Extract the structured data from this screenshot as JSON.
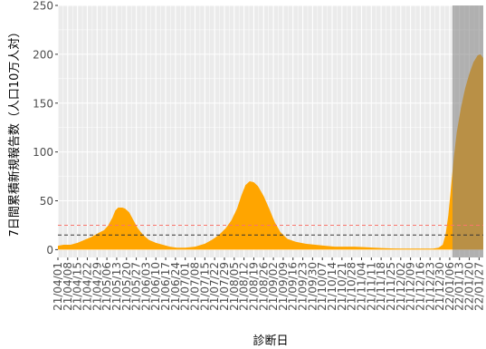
{
  "chart_data": {
    "type": "area",
    "xlabel": "診断日",
    "ylabel": "7日間累積新規報告数（人口10万人対）",
    "ylim": [
      -8,
      250
    ],
    "y_ticks": [
      0,
      50,
      100,
      150,
      200,
      250
    ],
    "x_tick_labels": [
      "21/04/01",
      "21/04/08",
      "21/04/15",
      "21/04/22",
      "21/04/29",
      "21/05/06",
      "21/05/13",
      "21/05/20",
      "21/05/27",
      "21/06/03",
      "21/06/10",
      "21/06/17",
      "21/06/24",
      "21/07/01",
      "21/07/08",
      "21/07/15",
      "21/07/22",
      "21/07/29",
      "21/08/05",
      "21/08/12",
      "21/08/19",
      "21/08/26",
      "21/09/02",
      "21/09/09",
      "21/09/16",
      "21/09/23",
      "21/09/30",
      "21/10/07",
      "21/10/14",
      "21/10/21",
      "21/10/28",
      "21/11/04",
      "21/11/11",
      "21/11/18",
      "21/11/25",
      "21/12/02",
      "21/12/09",
      "21/12/16",
      "21/12/23",
      "21/12/30",
      "22/01/06",
      "22/01/13",
      "22/01/20",
      "22/01/27"
    ],
    "x_range": [
      "2021-04-01",
      "2022-01-30"
    ],
    "shaded_region": [
      "2022-01-08",
      "2022-01-30"
    ],
    "reference_lines": [
      {
        "value": 25,
        "style": "dashed",
        "color": "#f8766d"
      },
      {
        "value": 15,
        "style": "dashed",
        "color": "#333333"
      }
    ],
    "grid": true,
    "series": [
      {
        "color": "#ffa500",
        "points": [
          [
            "2021-04-01",
            4
          ],
          [
            "2021-04-05",
            5
          ],
          [
            "2021-04-10",
            5
          ],
          [
            "2021-04-15",
            7
          ],
          [
            "2021-04-20",
            10
          ],
          [
            "2021-04-25",
            13
          ],
          [
            "2021-04-30",
            17
          ],
          [
            "2021-05-04",
            20
          ],
          [
            "2021-05-07",
            25
          ],
          [
            "2021-05-10",
            33
          ],
          [
            "2021-05-12",
            40
          ],
          [
            "2021-05-14",
            43
          ],
          [
            "2021-05-17",
            43
          ],
          [
            "2021-05-19",
            42
          ],
          [
            "2021-05-22",
            38
          ],
          [
            "2021-05-25",
            30
          ],
          [
            "2021-05-28",
            22
          ],
          [
            "2021-06-01",
            15
          ],
          [
            "2021-06-05",
            10
          ],
          [
            "2021-06-10",
            7
          ],
          [
            "2021-06-15",
            5
          ],
          [
            "2021-06-20",
            3
          ],
          [
            "2021-06-25",
            2
          ],
          [
            "2021-07-01",
            2
          ],
          [
            "2021-07-08",
            3
          ],
          [
            "2021-07-15",
            6
          ],
          [
            "2021-07-20",
            10
          ],
          [
            "2021-07-25",
            15
          ],
          [
            "2021-07-30",
            22
          ],
          [
            "2021-08-03",
            30
          ],
          [
            "2021-08-07",
            42
          ],
          [
            "2021-08-10",
            55
          ],
          [
            "2021-08-13",
            66
          ],
          [
            "2021-08-16",
            70
          ],
          [
            "2021-08-19",
            69
          ],
          [
            "2021-08-22",
            65
          ],
          [
            "2021-08-26",
            55
          ],
          [
            "2021-08-30",
            42
          ],
          [
            "2021-09-03",
            28
          ],
          [
            "2021-09-07",
            18
          ],
          [
            "2021-09-12",
            11
          ],
          [
            "2021-09-18",
            8
          ],
          [
            "2021-09-25",
            6
          ],
          [
            "2021-10-02",
            5
          ],
          [
            "2021-10-09",
            4
          ],
          [
            "2021-10-16",
            3
          ],
          [
            "2021-10-23",
            3
          ],
          [
            "2021-10-30",
            3
          ],
          [
            "2021-11-06",
            2.5
          ],
          [
            "2021-11-13",
            2
          ],
          [
            "2021-11-20",
            1.5
          ],
          [
            "2021-11-27",
            1.2
          ],
          [
            "2021-12-04",
            1
          ],
          [
            "2021-12-11",
            1
          ],
          [
            "2021-12-18",
            1
          ],
          [
            "2021-12-25",
            1
          ],
          [
            "2021-12-29",
            2
          ],
          [
            "2022-01-01",
            5
          ],
          [
            "2022-01-03",
            15
          ],
          [
            "2022-01-05",
            35
          ],
          [
            "2022-01-07",
            65
          ],
          [
            "2022-01-09",
            95
          ],
          [
            "2022-01-11",
            120
          ],
          [
            "2022-01-14",
            145
          ],
          [
            "2022-01-17",
            165
          ],
          [
            "2022-01-20",
            180
          ],
          [
            "2022-01-23",
            192
          ],
          [
            "2022-01-26",
            199
          ],
          [
            "2022-01-28",
            200
          ],
          [
            "2022-01-30",
            196
          ]
        ]
      }
    ]
  }
}
